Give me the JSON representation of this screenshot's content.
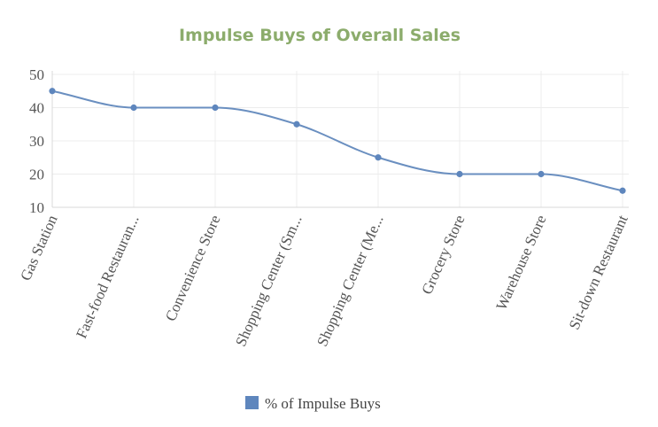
{
  "chart_data": {
    "type": "line",
    "title": "Impulse Buys of Overall Sales",
    "categories": [
      "Gas Station",
      "Fast-food Restauran...",
      "Convenience Store",
      "Shopping Center (Sm...",
      "Shopping Center (Me...",
      "Grocery Store",
      "Warehouse Store",
      "Sit-down Restaurant"
    ],
    "series": [
      {
        "name": "% of Impulse Buys",
        "values": [
          45,
          40,
          40,
          35,
          25,
          20,
          20,
          15
        ]
      }
    ],
    "yticks": [
      10,
      20,
      30,
      40,
      50
    ],
    "ylim": [
      10,
      50
    ],
    "xlabel": "",
    "ylabel": "",
    "grid": true,
    "legend_position": "bottom-center",
    "colors": {
      "title": "#8cac6c",
      "line": "#6a8fc0",
      "marker": "#5e86bd"
    }
  }
}
